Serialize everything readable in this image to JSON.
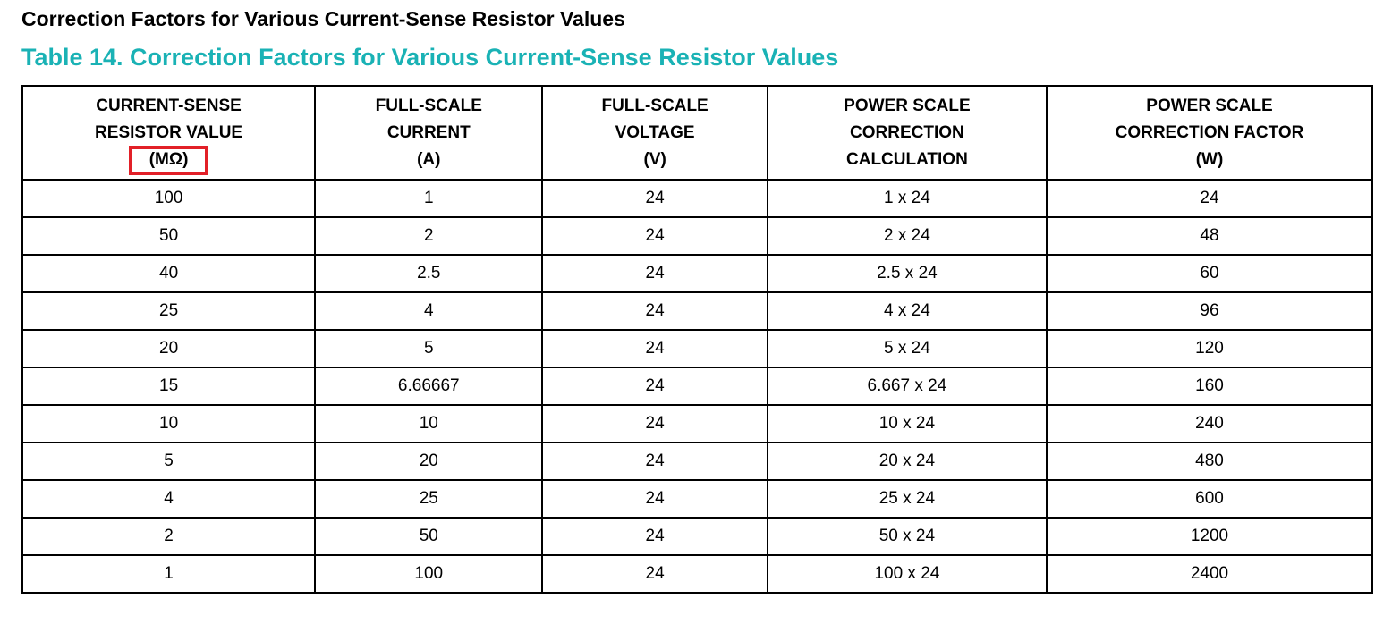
{
  "heading": "Correction Factors for Various Current-Sense Resistor Values",
  "table_caption": "Table 14. Correction Factors for Various Current-Sense Resistor Values",
  "colors": {
    "caption": "#1ab2b5",
    "annotation_box": "#e22028",
    "text": "#000000",
    "border": "#000000"
  },
  "table": {
    "columns": [
      {
        "lines": "CURRENT-SENSE\nRESISTOR VALUE",
        "unit": "(MΩ)",
        "unit_highlighted": true
      },
      {
        "lines": "FULL-SCALE\nCURRENT",
        "unit": "(A)",
        "unit_highlighted": false
      },
      {
        "lines": "FULL-SCALE\nVOLTAGE",
        "unit": "(V)",
        "unit_highlighted": false
      },
      {
        "lines": "POWER SCALE\nCORRECTION\nCALCULATION",
        "unit": "",
        "unit_highlighted": false
      },
      {
        "lines": "POWER SCALE\nCORRECTION FACTOR",
        "unit": "(W)",
        "unit_highlighted": false
      }
    ],
    "rows": [
      [
        "100",
        "1",
        "24",
        "1 x 24",
        "24"
      ],
      [
        "50",
        "2",
        "24",
        "2 x 24",
        "48"
      ],
      [
        "40",
        "2.5",
        "24",
        "2.5 x 24",
        "60"
      ],
      [
        "25",
        "4",
        "24",
        "4 x 24",
        "96"
      ],
      [
        "20",
        "5",
        "24",
        "5 x 24",
        "120"
      ],
      [
        "15",
        "6.66667",
        "24",
        "6.667 x 24",
        "160"
      ],
      [
        "10",
        "10",
        "24",
        "10 x 24",
        "240"
      ],
      [
        "5",
        "20",
        "24",
        "20 x 24",
        "480"
      ],
      [
        "4",
        "25",
        "24",
        "25 x 24",
        "600"
      ],
      [
        "2",
        "50",
        "24",
        "50 x 24",
        "1200"
      ],
      [
        "1",
        "100",
        "24",
        "100 x 24",
        "2400"
      ]
    ]
  }
}
